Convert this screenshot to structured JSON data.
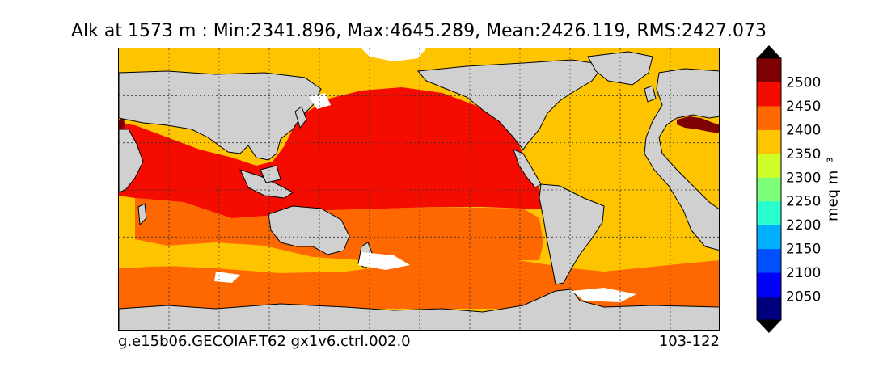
{
  "title": "Alk at 1573 m : Min:2341.896, Max:4645.289, Mean:2426.119, RMS:2427.073",
  "footer": {
    "case_name": "g.e15b06.GECOIAF.T62 gx1v6.ctrl.002.0",
    "years": "103-122"
  },
  "colorbar": {
    "unit_label": "meq m⁻³",
    "levels": [
      "2050",
      "2100",
      "2150",
      "2200",
      "2250",
      "2300",
      "2350",
      "2400",
      "2450",
      "2500"
    ],
    "colors": [
      "#00007f",
      "#0000ff",
      "#0050ff",
      "#00b0ff",
      "#29ffce",
      "#7dff7a",
      "#ceff29",
      "#ffc400",
      "#ff6800",
      "#f50c00",
      "#7f0000"
    ]
  },
  "map_colors": {
    "land": "#d0d0d0",
    "missing": "#ffffff",
    "band_2350_2400": "#ffc400",
    "band_2400_2450": "#ff6800",
    "band_2450_2500": "#f50c00",
    "band_above_2500": "#7f0000",
    "band_2300_2350": "#ceff29"
  }
}
